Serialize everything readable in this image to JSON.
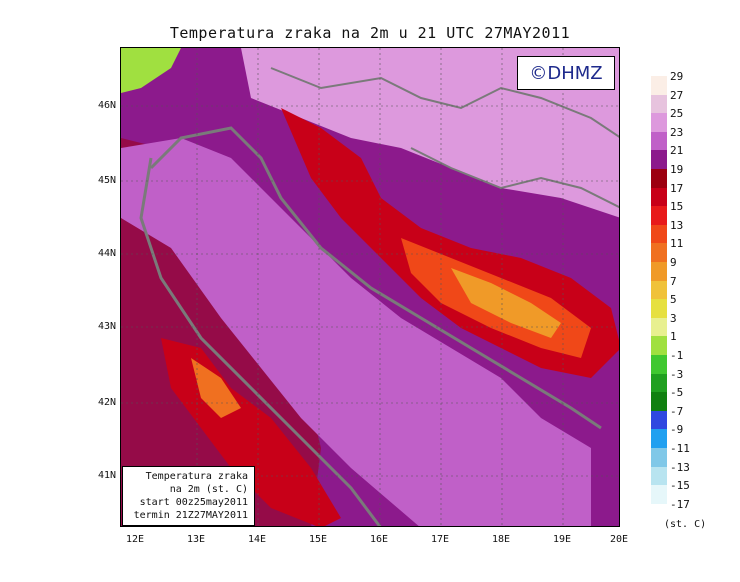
{
  "title": "Temperatura zraka na 2m u 21 UTC 27MAY2011",
  "copyright": "©DHMZ",
  "info_box": {
    "line1": "Temperatura zraka",
    "line2": "na 2m (st. C)",
    "line3": "start 00z25may2011",
    "line4": "termin 21Z27MAY2011"
  },
  "lat_labels": [
    "46N",
    "45N",
    "44N",
    "43N",
    "42N",
    "41N"
  ],
  "lon_labels": [
    "12E",
    "13E",
    "14E",
    "15E",
    "16E",
    "17E",
    "18E",
    "19E",
    "20E"
  ],
  "legend": {
    "labels": [
      "29",
      "27",
      "25",
      "23",
      "21",
      "19",
      "17",
      "15",
      "13",
      "11",
      "9",
      "7",
      "5",
      "3",
      "1",
      "-1",
      "-3",
      "-5",
      "-7",
      "-9",
      "-11",
      "-13",
      "-15",
      "-17"
    ],
    "unit": "(st. C)",
    "colors": [
      "#fbeee6",
      "#e7c3de",
      "#dd99dd",
      "#c060c8",
      "#8c1a8c",
      "#9c0010",
      "#c80018",
      "#e81a1a",
      "#f04818",
      "#f07020",
      "#f09a28",
      "#f0c23a",
      "#e6e040",
      "#e8f090",
      "#a0e040",
      "#40c830",
      "#20a020",
      "#108010",
      "#3048e0",
      "#20a0f0",
      "#80c8e8",
      "#b8e4f0",
      "#e6f7fa"
    ]
  },
  "colors": {
    "sea": "#8c1a8c",
    "coast_line": "#7a7a7a",
    "warm_land": "#d98ad8"
  }
}
